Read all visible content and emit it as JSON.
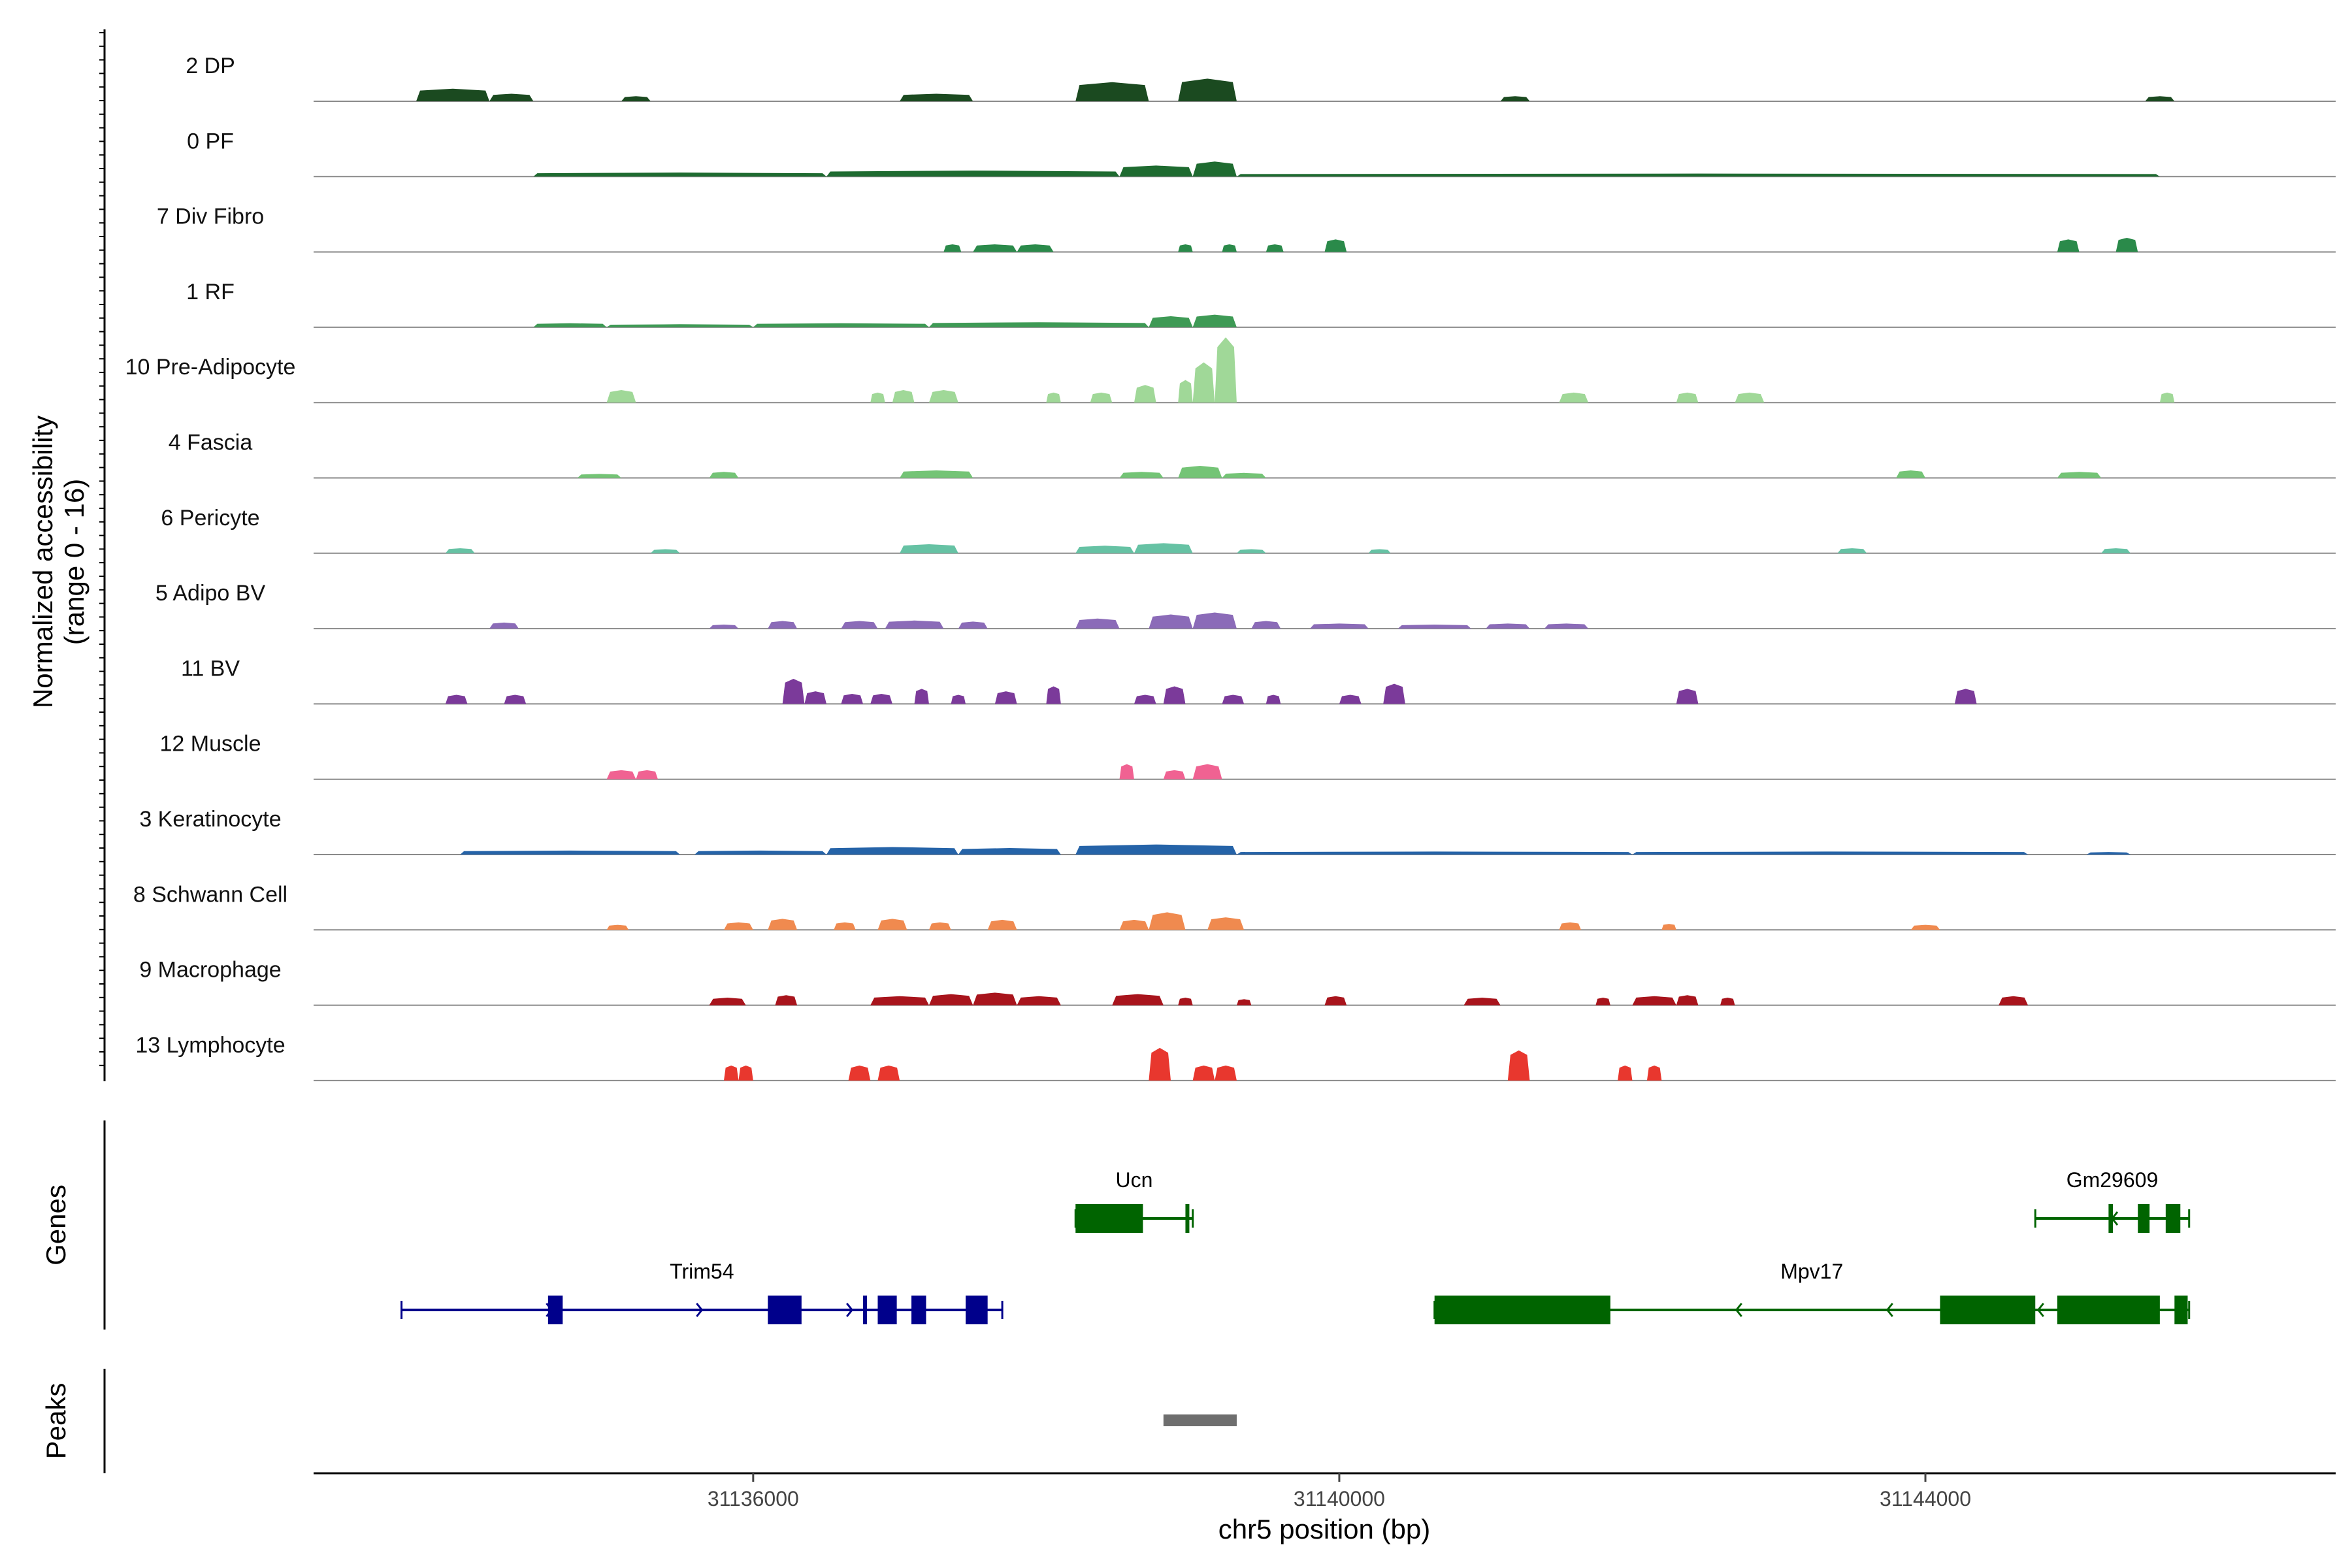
{
  "chart_data": {
    "type": "area",
    "ylabel": "Normalized accessibility",
    "ylabel_range": "(range 0 - 16)",
    "xlabel": "chr5 position (bp)",
    "xlim": [
      31133000,
      31146800
    ],
    "ylim": [
      0,
      16
    ],
    "x_ticks": [
      31136000,
      31140000,
      31144000
    ],
    "x_tick_labels": [
      "31136000",
      "31140000",
      "31144000"
    ],
    "tracks": [
      {
        "name": "2 DP",
        "color": "#1B4A20",
        "peaks": [
          [
            31133700,
            31134200,
            2.5
          ],
          [
            31134200,
            31134500,
            1.5
          ],
          [
            31135100,
            31135300,
            1
          ],
          [
            31137000,
            31137500,
            1.5
          ],
          [
            31138200,
            31138700,
            3.8
          ],
          [
            31138900,
            31139300,
            4.5
          ],
          [
            31141100,
            31141300,
            1
          ],
          [
            31145500,
            31145700,
            1
          ]
        ]
      },
      {
        "name": "0 PF",
        "color": "#1E6B30",
        "peaks": [
          [
            31134500,
            31136500,
            0.8
          ],
          [
            31136500,
            31138500,
            1.2
          ],
          [
            31138500,
            31139000,
            2.2
          ],
          [
            31139000,
            31139300,
            3
          ],
          [
            31139300,
            31145600,
            0.6
          ]
        ]
      },
      {
        "name": "7 Div Fibro",
        "color": "#2A8A4A",
        "peaks": [
          [
            31137300,
            31137420,
            1.5
          ],
          [
            31137500,
            31137800,
            1.5
          ],
          [
            31137800,
            31138050,
            1.5
          ],
          [
            31138900,
            31139000,
            1.5
          ],
          [
            31139200,
            31139300,
            1.5
          ],
          [
            31139500,
            31139620,
            1.5
          ],
          [
            31139900,
            31140050,
            2.5
          ],
          [
            31144900,
            31145050,
            2.5
          ],
          [
            31145300,
            31145450,
            2.8
          ]
        ]
      },
      {
        "name": "1 RF",
        "color": "#3E9A55",
        "peaks": [
          [
            31134500,
            31135000,
            0.8
          ],
          [
            31135000,
            31136000,
            0.6
          ],
          [
            31136000,
            31137200,
            0.8
          ],
          [
            31137200,
            31138700,
            1
          ],
          [
            31138700,
            31139000,
            2.2
          ],
          [
            31139000,
            31139300,
            2.5
          ]
        ]
      },
      {
        "name": "10 Pre-Adipocyte",
        "color": "#A0D898",
        "peaks": [
          [
            31135000,
            31135200,
            2.5
          ],
          [
            31136800,
            31136900,
            2
          ],
          [
            31136950,
            31137100,
            2.5
          ],
          [
            31137200,
            31137400,
            2.5
          ],
          [
            31138000,
            31138100,
            2
          ],
          [
            31138300,
            31138450,
            2
          ],
          [
            31138600,
            31138750,
            3.5
          ],
          [
            31138900,
            31139000,
            4.5
          ],
          [
            31139000,
            31139150,
            8
          ],
          [
            31139150,
            31139300,
            13
          ],
          [
            31141500,
            31141700,
            2
          ],
          [
            31142300,
            31142450,
            2
          ],
          [
            31142700,
            31142900,
            2
          ],
          [
            31145600,
            31145700,
            2
          ]
        ]
      },
      {
        "name": "4 Fascia",
        "color": "#74C476",
        "peaks": [
          [
            31134800,
            31135100,
            0.8
          ],
          [
            31135700,
            31135900,
            1.2
          ],
          [
            31137000,
            31137500,
            1.5
          ],
          [
            31138500,
            31138800,
            1.2
          ],
          [
            31138900,
            31139200,
            2.4
          ],
          [
            31139200,
            31139500,
            1
          ],
          [
            31143800,
            31144000,
            1.5
          ],
          [
            31144900,
            31145200,
            1.2
          ]
        ]
      },
      {
        "name": "6 Pericyte",
        "color": "#66C2A4",
        "peaks": [
          [
            31133900,
            31134100,
            1
          ],
          [
            31135300,
            31135500,
            0.8
          ],
          [
            31137000,
            31137400,
            1.8
          ],
          [
            31138200,
            31138600,
            1.5
          ],
          [
            31138600,
            31139000,
            2
          ],
          [
            31139300,
            31139500,
            0.8
          ],
          [
            31140200,
            31140350,
            0.8
          ],
          [
            31143400,
            31143600,
            1
          ],
          [
            31145200,
            31145400,
            1
          ]
        ]
      },
      {
        "name": "5 Adipo BV",
        "color": "#8B6BB8",
        "peaks": [
          [
            31134200,
            31134400,
            1.2
          ],
          [
            31135700,
            31135900,
            0.8
          ],
          [
            31136100,
            31136300,
            1.5
          ],
          [
            31136600,
            31136850,
            1.5
          ],
          [
            31136900,
            31137300,
            1.6
          ],
          [
            31137400,
            31137600,
            1.4
          ],
          [
            31138200,
            31138500,
            2
          ],
          [
            31138700,
            31139000,
            2.8
          ],
          [
            31139000,
            31139300,
            3.2
          ],
          [
            31139400,
            31139600,
            1.5
          ],
          [
            31139800,
            31140200,
            1
          ],
          [
            31140400,
            31140900,
            0.8
          ],
          [
            31141000,
            31141300,
            1
          ],
          [
            31141400,
            31141700,
            1
          ]
        ]
      },
      {
        "name": "11 BV",
        "color": "#7B3A9A",
        "peaks": [
          [
            31133900,
            31134050,
            1.8
          ],
          [
            31134300,
            31134450,
            1.8
          ],
          [
            31136200,
            31136350,
            5
          ],
          [
            31136350,
            31136500,
            2.5
          ],
          [
            31136600,
            31136750,
            2
          ],
          [
            31136800,
            31136950,
            2
          ],
          [
            31137100,
            31137200,
            3
          ],
          [
            31137350,
            31137450,
            1.8
          ],
          [
            31137650,
            31137800,
            2.5
          ],
          [
            31138000,
            31138100,
            3.5
          ],
          [
            31138600,
            31138750,
            1.8
          ],
          [
            31138800,
            31138950,
            3.5
          ],
          [
            31139200,
            31139350,
            1.8
          ],
          [
            31139500,
            31139600,
            1.8
          ],
          [
            31140000,
            31140150,
            1.8
          ],
          [
            31140300,
            31140450,
            4
          ],
          [
            31142300,
            31142450,
            3
          ],
          [
            31144200,
            31144350,
            3
          ]
        ]
      },
      {
        "name": "12 Muscle",
        "color": "#F06292",
        "peaks": [
          [
            31135000,
            31135200,
            1.8
          ],
          [
            31135200,
            31135350,
            1.8
          ],
          [
            31138500,
            31138600,
            3
          ],
          [
            31138800,
            31138950,
            1.8
          ],
          [
            31139000,
            31139200,
            3
          ]
        ]
      },
      {
        "name": "3 Keratinocyte",
        "color": "#2563A8",
        "peaks": [
          [
            31134000,
            31135500,
            0.8
          ],
          [
            31135600,
            31136500,
            0.8
          ],
          [
            31136500,
            31137400,
            1.5
          ],
          [
            31137400,
            31138100,
            1.3
          ],
          [
            31138200,
            31139300,
            2
          ],
          [
            31139300,
            31142000,
            0.6
          ],
          [
            31142000,
            31144700,
            0.6
          ],
          [
            31145100,
            31145400,
            0.5
          ]
        ]
      },
      {
        "name": "8 Schwann Cell",
        "color": "#F08A4F",
        "peaks": [
          [
            31135000,
            31135150,
            1
          ],
          [
            31135800,
            31136000,
            1.5
          ],
          [
            31136100,
            31136300,
            2.2
          ],
          [
            31136550,
            31136700,
            1.5
          ],
          [
            31136850,
            31137050,
            2.2
          ],
          [
            31137200,
            31137350,
            1.5
          ],
          [
            31137600,
            31137800,
            2
          ],
          [
            31138500,
            31138700,
            2
          ],
          [
            31138700,
            31138950,
            3.5
          ],
          [
            31139100,
            31139350,
            2.5
          ],
          [
            31141500,
            31141650,
            1.5
          ],
          [
            31142200,
            31142300,
            1.2
          ],
          [
            31143900,
            31144100,
            1
          ]
        ]
      },
      {
        "name": "9 Macrophage",
        "color": "#A8141C",
        "peaks": [
          [
            31135700,
            31135950,
            1.5
          ],
          [
            31136150,
            31136300,
            2
          ],
          [
            31136800,
            31137200,
            1.8
          ],
          [
            31137200,
            31137500,
            2.2
          ],
          [
            31137500,
            31137800,
            2.5
          ],
          [
            31137800,
            31138100,
            1.8
          ],
          [
            31138450,
            31138800,
            2.2
          ],
          [
            31138900,
            31139000,
            1.5
          ],
          [
            31139300,
            31139400,
            1.2
          ],
          [
            31139900,
            31140050,
            1.8
          ],
          [
            31140850,
            31141100,
            1.5
          ],
          [
            31141750,
            31141850,
            1.5
          ],
          [
            31142000,
            31142300,
            1.8
          ],
          [
            31142300,
            31142450,
            2
          ],
          [
            31142600,
            31142700,
            1.5
          ],
          [
            31144500,
            31144700,
            1.8
          ]
        ]
      },
      {
        "name": "13 Lymphocyte",
        "color": "#E8372E",
        "peaks": [
          [
            31135800,
            31135900,
            3
          ],
          [
            31135900,
            31136000,
            3
          ],
          [
            31136650,
            31136800,
            3
          ],
          [
            31136850,
            31137000,
            3
          ],
          [
            31138700,
            31138850,
            6.5
          ],
          [
            31139000,
            31139150,
            3
          ],
          [
            31139150,
            31139300,
            3
          ],
          [
            31141150,
            31141300,
            6
          ],
          [
            31141900,
            31142000,
            3
          ],
          [
            31142100,
            31142200,
            3
          ]
        ]
      }
    ],
    "genes": [
      {
        "name": "Ucn",
        "color": "#006400",
        "strand": "-",
        "start": 31138200,
        "end": 31139000,
        "exons": [
          [
            31138200,
            31138660
          ],
          [
            31138950,
            31138970
          ]
        ]
      },
      {
        "name": "Gm29609",
        "color": "#006400",
        "strand": "-",
        "start": 31144750,
        "end": 31145800,
        "exons": [
          [
            31145250,
            31145280
          ],
          [
            31145450,
            31145530
          ],
          [
            31145640,
            31145740
          ]
        ]
      },
      {
        "name": "Trim54",
        "color": "#00008B",
        "strand": "+",
        "start": 31133600,
        "end": 31137700,
        "exons": [
          [
            31134600,
            31134700
          ],
          [
            31136100,
            31136330
          ],
          [
            31136750,
            31136770
          ],
          [
            31136850,
            31136980
          ],
          [
            31137080,
            31137180
          ],
          [
            31137450,
            31137600
          ]
        ]
      },
      {
        "name": "Mpv17",
        "color": "#006400",
        "strand": "-",
        "start": 31140650,
        "end": 31145800,
        "exons": [
          [
            31140650,
            31141850
          ],
          [
            31144100,
            31144750
          ],
          [
            31144900,
            31145600
          ],
          [
            31145700,
            31145790
          ]
        ]
      }
    ],
    "peaks_track": {
      "label": "Peaks",
      "color": "#6E6E6E",
      "regions": [
        [
          31138800,
          31139300
        ]
      ]
    },
    "genes_track_label": "Genes"
  }
}
